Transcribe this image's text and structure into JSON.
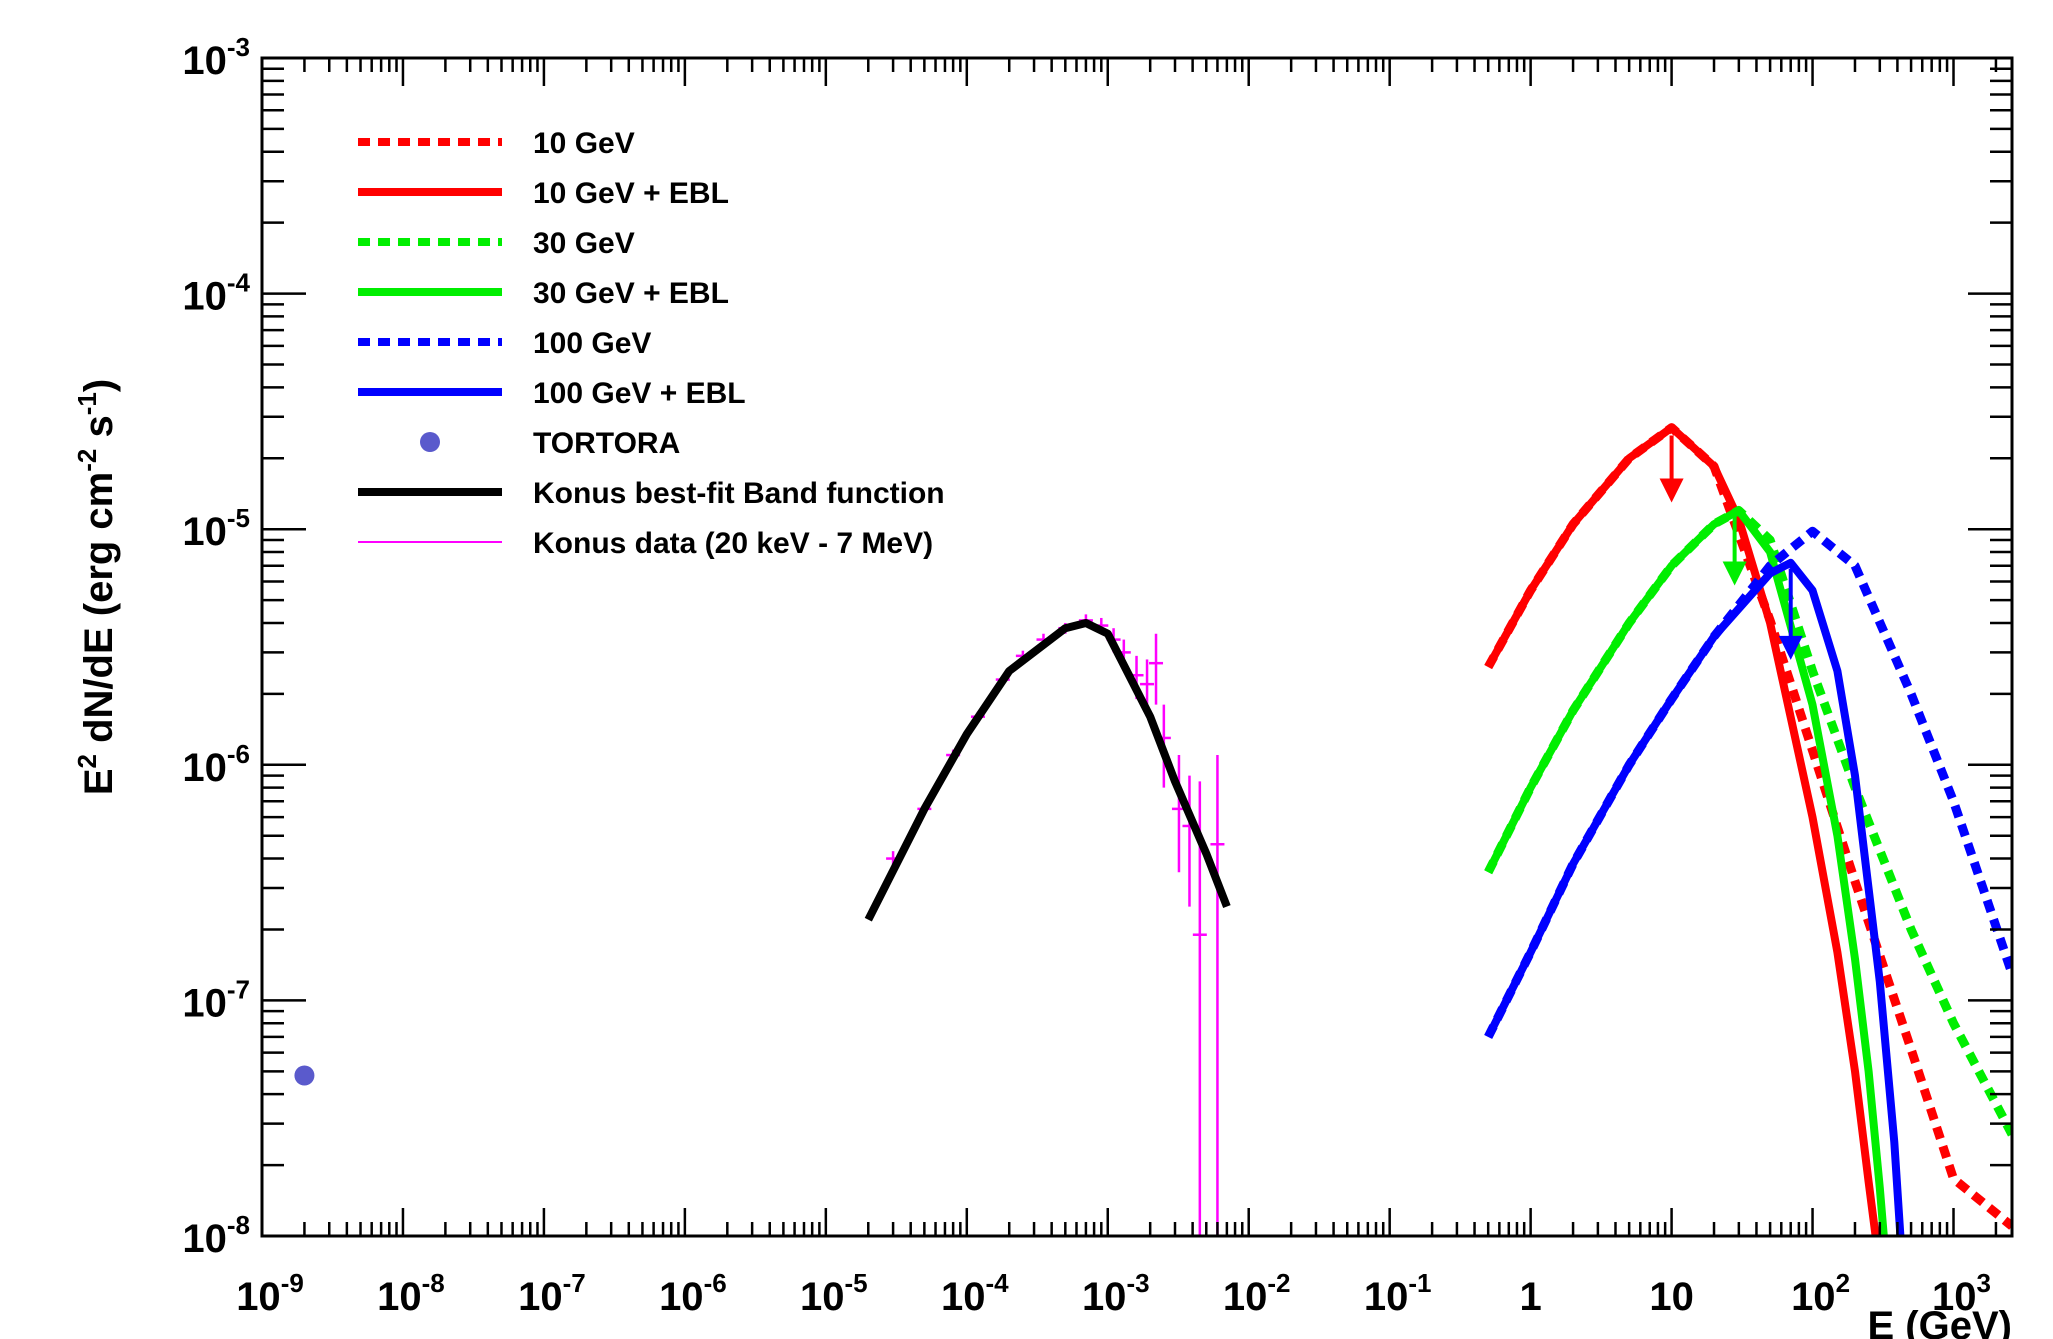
{
  "chart_data": {
    "type": "line",
    "x_axis": {
      "title": "E (GeV)",
      "scale": "log",
      "range": [
        1e-09,
        2600
      ],
      "tick_labels": [
        {
          "value": 1e-09,
          "base": "10",
          "exp": "-9"
        },
        {
          "value": 1e-08,
          "base": "10",
          "exp": "-8"
        },
        {
          "value": 1e-07,
          "base": "10",
          "exp": "-7"
        },
        {
          "value": 1e-06,
          "base": "10",
          "exp": "-6"
        },
        {
          "value": 1e-05,
          "base": "10",
          "exp": "-5"
        },
        {
          "value": 0.0001,
          "base": "10",
          "exp": "-4"
        },
        {
          "value": 0.001,
          "base": "10",
          "exp": "-3"
        },
        {
          "value": 0.01,
          "base": "10",
          "exp": "-2"
        },
        {
          "value": 0.1,
          "base": "10",
          "exp": "-1"
        },
        {
          "value": 1,
          "base": "1",
          "exp": ""
        },
        {
          "value": 10,
          "base": "10",
          "exp": ""
        },
        {
          "value": 100,
          "base": "10",
          "exp": "2"
        },
        {
          "value": 1000,
          "base": "10",
          "exp": "3"
        }
      ]
    },
    "y_axis": {
      "title_parts": [
        {
          "t": "E",
          "sup": false
        },
        {
          "t": "2",
          "sup": true
        },
        {
          "t": " dN/dE (erg cm",
          "sup": false
        },
        {
          "t": "-2",
          "sup": true
        },
        {
          "t": " s",
          "sup": false
        },
        {
          "t": "-1",
          "sup": true
        },
        {
          "t": ")",
          "sup": false
        }
      ],
      "scale": "log",
      "range": [
        1e-08,
        0.001
      ],
      "tick_labels": [
        {
          "value": 1e-08,
          "base": "10",
          "exp": "-8"
        },
        {
          "value": 1e-07,
          "base": "10",
          "exp": "-7"
        },
        {
          "value": 1e-06,
          "base": "10",
          "exp": "-6"
        },
        {
          "value": 1e-05,
          "base": "10",
          "exp": "-5"
        },
        {
          "value": 0.0001,
          "base": "10",
          "exp": "-4"
        },
        {
          "value": 0.001,
          "base": "10",
          "exp": "-3"
        }
      ]
    },
    "grid": false,
    "legend": {
      "placement": "top-left",
      "entries": [
        {
          "label": "10 GeV",
          "style": "dotted",
          "color": "#ff0000"
        },
        {
          "label": "10 GeV + EBL",
          "style": "solid",
          "color": "#ff0000"
        },
        {
          "label": "30 GeV",
          "style": "dotted",
          "color": "#00ee00"
        },
        {
          "label": "30 GeV + EBL",
          "style": "solid",
          "color": "#00ee00"
        },
        {
          "label": "100 GeV",
          "style": "dotted",
          "color": "#0000ff"
        },
        {
          "label": "100 GeV + EBL",
          "style": "solid",
          "color": "#0000ff"
        },
        {
          "label": "TORTORA",
          "style": "marker",
          "color": "#5a5acc"
        },
        {
          "label": "Konus best-fit Band function",
          "style": "solid",
          "color": "#000000"
        },
        {
          "label": "Konus data (20 keV - 7 MeV)",
          "style": "thin",
          "color": "#ff00ff"
        }
      ]
    },
    "series": [
      {
        "name": "10 GeV",
        "style": "dotted",
        "color": "#ff0000",
        "x": [
          0.5,
          1,
          2,
          5,
          10,
          20,
          50,
          100,
          200,
          500,
          1000,
          2600
        ],
        "y": [
          2.6e-06,
          5.5e-06,
          1.05e-05,
          2e-05,
          2.7e-05,
          1.85e-05,
          4.1e-06,
          1.15e-06,
          3.2e-07,
          6.2e-08,
          1.75e-08,
          1.1e-08
        ]
      },
      {
        "name": "10 GeV + EBL",
        "style": "solid",
        "color": "#ff0000",
        "x": [
          0.5,
          1,
          2,
          5,
          10,
          20,
          30,
          50,
          100,
          150,
          200,
          250,
          280
        ],
        "y": [
          2.6e-06,
          5.5e-06,
          1.05e-05,
          2e-05,
          2.7e-05,
          1.85e-05,
          1.1e-05,
          4e-06,
          6e-07,
          1.6e-07,
          5e-08,
          1.7e-08,
          1e-08
        ]
      },
      {
        "name": "30 GeV",
        "style": "dotted",
        "color": "#00ee00",
        "x": [
          0.5,
          1,
          2,
          5,
          10,
          20,
          30,
          50,
          100,
          200,
          500,
          1000,
          2600
        ],
        "y": [
          3.5e-07,
          8e-07,
          1.7e-06,
          4e-06,
          7e-06,
          1.05e-05,
          1.2e-05,
          9e-06,
          2.5e-06,
          8e-07,
          2e-07,
          8e-08,
          2.7e-08
        ]
      },
      {
        "name": "30 GeV + EBL",
        "style": "solid",
        "color": "#00ee00",
        "x": [
          0.5,
          1,
          2,
          5,
          10,
          20,
          30,
          50,
          100,
          150,
          200,
          250,
          300,
          320
        ],
        "y": [
          3.5e-07,
          8e-07,
          1.7e-06,
          4e-06,
          7e-06,
          1.05e-05,
          1.2e-05,
          8e-06,
          1.8e-06,
          5e-07,
          1.5e-07,
          5e-08,
          1.6e-08,
          1e-08
        ]
      },
      {
        "name": "100 GeV",
        "style": "dotted",
        "color": "#0000ff",
        "x": [
          0.5,
          1,
          2,
          5,
          10,
          20,
          50,
          100,
          200,
          500,
          1000,
          2600
        ],
        "y": [
          7e-08,
          1.6e-07,
          3.8e-07,
          1e-06,
          1.9e-06,
          3.5e-06,
          7e-06,
          9.8e-06,
          7e-06,
          2e-06,
          7e-07,
          1.3e-07
        ]
      },
      {
        "name": "100 GeV + EBL",
        "style": "solid",
        "color": "#0000ff",
        "x": [
          0.5,
          1,
          2,
          5,
          10,
          20,
          50,
          70,
          100,
          150,
          200,
          300,
          380,
          420
        ],
        "y": [
          7e-08,
          1.6e-07,
          3.8e-07,
          1e-06,
          1.9e-06,
          3.5e-06,
          6.5e-06,
          7.2e-06,
          5.5e-06,
          2.5e-06,
          9e-07,
          1.2e-07,
          2.5e-08,
          1e-08
        ]
      },
      {
        "name": "Konus best-fit Band function",
        "style": "solid",
        "color": "#000000",
        "x": [
          2e-05,
          5e-05,
          0.0001,
          0.0002,
          0.0005,
          0.0007,
          0.001,
          0.002,
          0.003,
          0.005,
          0.007
        ],
        "y": [
          2.2e-07,
          6.5e-07,
          1.35e-06,
          2.5e-06,
          3.8e-06,
          4e-06,
          3.6e-06,
          1.6e-06,
          8.5e-07,
          4.2e-07,
          2.5e-07
        ]
      }
    ],
    "konus_data": {
      "name": "Konus data (20 keV - 7 MeV)",
      "color": "#ff00ff",
      "points": [
        {
          "x": 3e-05,
          "y": 4e-07,
          "ylo": 3.7e-07,
          "yhi": 4.3e-07
        },
        {
          "x": 5e-05,
          "y": 6.5e-07,
          "ylo": 6.1e-07,
          "yhi": 6.9e-07
        },
        {
          "x": 8e-05,
          "y": 1.1e-06,
          "ylo": 1.04e-06,
          "yhi": 1.16e-06
        },
        {
          "x": 0.00012,
          "y": 1.6e-06,
          "ylo": 1.52e-06,
          "yhi": 1.68e-06
        },
        {
          "x": 0.00018,
          "y": 2.3e-06,
          "ylo": 2.2e-06,
          "yhi": 2.4e-06
        },
        {
          "x": 0.00025,
          "y": 2.9e-06,
          "ylo": 2.75e-06,
          "yhi": 3.05e-06
        },
        {
          "x": 0.00035,
          "y": 3.4e-06,
          "ylo": 3.2e-06,
          "yhi": 3.6e-06
        },
        {
          "x": 0.0005,
          "y": 3.8e-06,
          "ylo": 3.6e-06,
          "yhi": 4e-06
        },
        {
          "x": 0.0007,
          "y": 4.1e-06,
          "ylo": 3.85e-06,
          "yhi": 4.35e-06
        },
        {
          "x": 0.0009,
          "y": 3.9e-06,
          "ylo": 3.6e-06,
          "yhi": 4.2e-06
        },
        {
          "x": 0.0011,
          "y": 3.4e-06,
          "ylo": 3e-06,
          "yhi": 3.8e-06
        },
        {
          "x": 0.0013,
          "y": 3e-06,
          "ylo": 2.6e-06,
          "yhi": 3.4e-06
        },
        {
          "x": 0.0016,
          "y": 2.4e-06,
          "ylo": 1.9e-06,
          "yhi": 2.9e-06
        },
        {
          "x": 0.0019,
          "y": 2.2e-06,
          "ylo": 1.6e-06,
          "yhi": 2.8e-06
        },
        {
          "x": 0.0022,
          "y": 2.7e-06,
          "ylo": 1.8e-06,
          "yhi": 3.6e-06
        },
        {
          "x": 0.0025,
          "y": 1.3e-06,
          "ylo": 8e-07,
          "yhi": 1.8e-06
        },
        {
          "x": 0.0032,
          "y": 6.5e-07,
          "ylo": 3.5e-07,
          "yhi": 1.1e-06
        },
        {
          "x": 0.0038,
          "y": 5.5e-07,
          "ylo": 2.5e-07,
          "yhi": 9e-07
        },
        {
          "x": 0.0045,
          "y": 1.9e-07,
          "ylo": 1e-08,
          "yhi": 8.5e-07
        },
        {
          "x": 0.006,
          "y": 4.6e-07,
          "ylo": 1e-08,
          "yhi": 1.1e-06
        }
      ]
    },
    "tortora": {
      "name": "TORTORA",
      "color": "#5a5acc",
      "x": 2e-09,
      "y": 4.8e-08
    },
    "arrows": [
      {
        "color": "#ff0000",
        "x": 10,
        "y_from": 2.5e-05,
        "y_to": 1.35e-05
      },
      {
        "color": "#00ee00",
        "x": 28,
        "y_from": 1.15e-05,
        "y_to": 6e-06
      },
      {
        "color": "#0000ff",
        "x": 70,
        "y_from": 6.8e-06,
        "y_to": 2.9e-06
      }
    ]
  }
}
